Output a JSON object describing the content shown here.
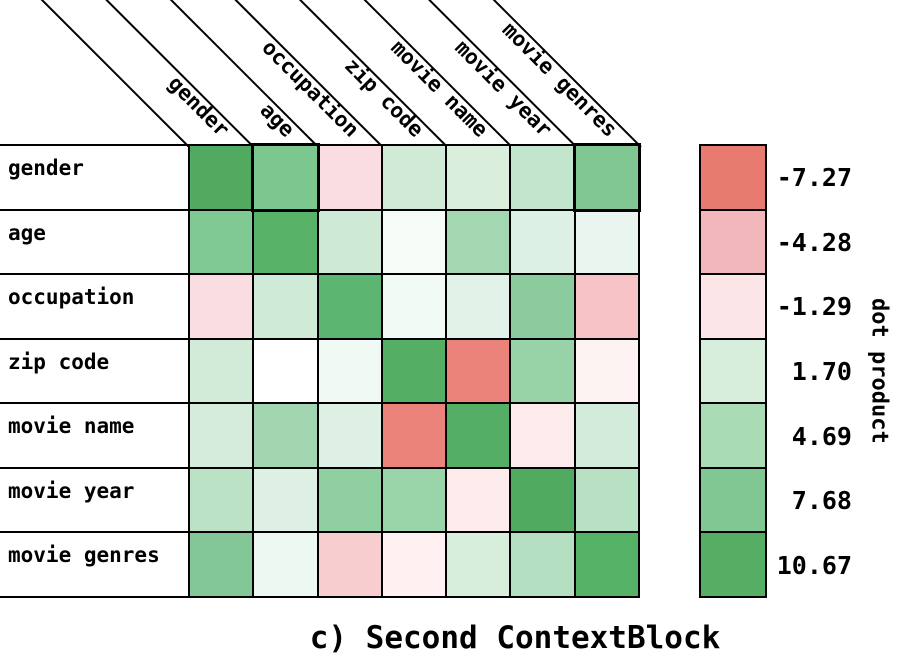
{
  "chart_data": {
    "type": "heatmap",
    "caption": "c) Second ContextBlock",
    "rows": [
      "gender",
      "age",
      "occupation",
      "zip code",
      "movie name",
      "movie year",
      "movie genres"
    ],
    "columns": [
      "gender",
      "age",
      "occupation",
      "zip code",
      "movie name",
      "movie year",
      "movie genres"
    ],
    "cell_colors": [
      [
        "#51aa60",
        "#7cc68f",
        "#fadde0",
        "#d0ead7",
        "#d9eedd",
        "#c3e5cd",
        "#80c794"
      ],
      [
        "#80c894",
        "#58b369",
        "#cfe9d7",
        "#f5fbf7",
        "#a3d7b1",
        "#dcf0e3",
        "#e9f5ee"
      ],
      [
        "#fadde0",
        "#d0ead8",
        "#5cb671",
        "#f2faf5",
        "#e2f2e8",
        "#8bcb9d",
        "#f7c3c6"
      ],
      [
        "#d2ebd9",
        "#ffffff",
        "#f1f9f4",
        "#54ae64",
        "#ec837b",
        "#98d2a7",
        "#fdf3f3"
      ],
      [
        "#d5ecdc",
        "#a2d6b0",
        "#ddf0e3",
        "#ec837b",
        "#55ae66",
        "#fdebeb",
        "#d3ebda"
      ],
      [
        "#bce2c6",
        "#ddf0e3",
        "#8fcfa0",
        "#9ad4a9",
        "#fdeaea",
        "#50ab60",
        "#b8e0c2"
      ],
      [
        "#82c795",
        "#eef8f2",
        "#f7cdd0",
        "#fff0f2",
        "#d7eedd",
        "#b5dfc1",
        "#55b166"
      ]
    ],
    "estimated_values": [
      [
        10.7,
        7.7,
        -1.3,
        1.7,
        1.6,
        3.2,
        7.7
      ],
      [
        7.7,
        10.4,
        1.9,
        0.5,
        4.7,
        1.5,
        1.0
      ],
      [
        -1.3,
        1.9,
        10.2,
        0.6,
        1.2,
        6.9,
        -3.4
      ],
      [
        1.8,
        0.2,
        0.6,
        10.6,
        -7.1,
        5.6,
        -0.4
      ],
      [
        1.7,
        5.0,
        1.4,
        -7.1,
        10.5,
        -0.8,
        1.8
      ],
      [
        3.5,
        1.4,
        6.6,
        5.4,
        -0.9,
        10.7,
        3.7
      ],
      [
        7.5,
        0.9,
        -2.6,
        -0.7,
        1.6,
        3.3,
        10.3
      ]
    ],
    "highlighted_cells": [
      {
        "row": 0,
        "col": 1,
        "row_label": "gender",
        "col_label": "age"
      },
      {
        "row": 0,
        "col": 6,
        "row_label": "gender",
        "col_label": "movie genres"
      }
    ],
    "colorbar": {
      "title": "dot product",
      "orientation": "vertical",
      "tick_labels": [
        "-7.27",
        "-4.28",
        "-1.29",
        "1.70",
        "4.69",
        "7.68",
        "10.67"
      ],
      "tick_values": [
        -7.27,
        -4.28,
        -1.29,
        1.7,
        4.69,
        7.68,
        10.67
      ],
      "colors": [
        "#e87b70",
        "#f2b7ba",
        "#fbe5e6",
        "#d8eedd",
        "#a9dbb5",
        "#80c793",
        "#56ae65"
      ]
    },
    "grid_line_color": "#000000",
    "background_color": "#ffffff"
  }
}
